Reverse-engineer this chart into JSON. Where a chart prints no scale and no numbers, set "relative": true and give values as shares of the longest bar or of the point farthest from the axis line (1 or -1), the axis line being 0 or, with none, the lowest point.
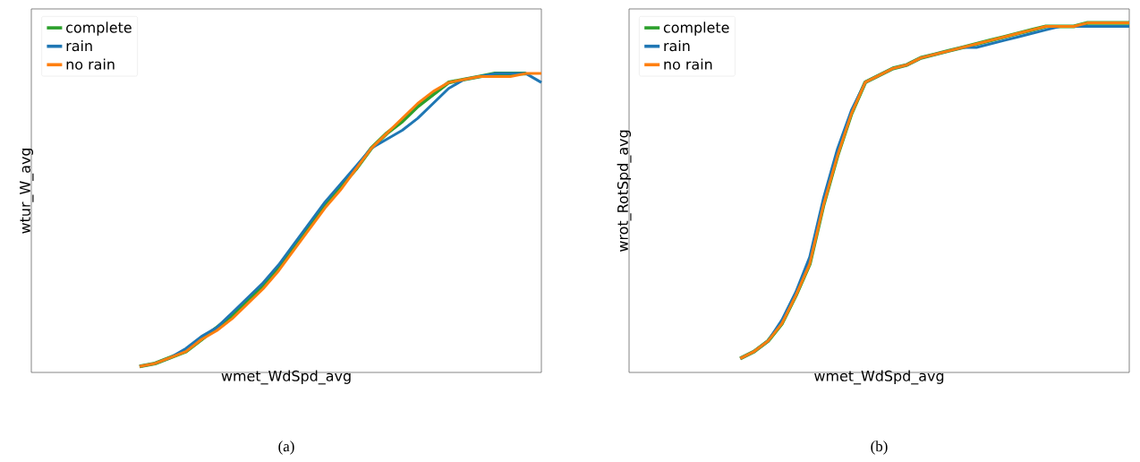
{
  "chart_data": [
    {
      "type": "line",
      "relative": true,
      "xlabel": "wmet_WdSpd_avg",
      "ylabel": "wtur_W_avg",
      "legend": "top left",
      "annotations": [
        "(a)"
      ],
      "categories": [
        null,
        null,
        null,
        null,
        null,
        null,
        null,
        null,
        null,
        null,
        null,
        null,
        null,
        null,
        null,
        null,
        null,
        null,
        null,
        null,
        null,
        null,
        null,
        null,
        null,
        null,
        null,
        null,
        null,
        null,
        null,
        null,
        null,
        null
      ],
      "series": [
        {
          "name": "complete",
          "color": "#2ca02c",
          "values": [
            null,
            null,
            null,
            null,
            null,
            null,
            null,
            0.02,
            0.03,
            0.05,
            0.07,
            0.11,
            0.15,
            0.19,
            0.24,
            0.29,
            0.35,
            0.42,
            0.49,
            0.56,
            0.62,
            0.68,
            0.75,
            0.8,
            0.84,
            0.89,
            0.93,
            0.97,
            0.98,
            0.99,
            1.0,
            1.0,
            1.0,
            null
          ]
        },
        {
          "name": "rain",
          "color": "#1f77b4",
          "values": [
            null,
            null,
            null,
            null,
            null,
            null,
            null,
            0.02,
            0.03,
            0.05,
            0.08,
            0.12,
            0.15,
            0.2,
            0.25,
            0.3,
            0.36,
            0.43,
            0.5,
            0.57,
            0.63,
            0.69,
            0.75,
            0.78,
            0.81,
            0.85,
            0.9,
            0.95,
            0.98,
            0.99,
            1.0,
            1.0,
            1.0,
            0.97
          ]
        },
        {
          "name": "no rain",
          "color": "#ff7f0e",
          "values": [
            null,
            null,
            null,
            null,
            null,
            null,
            null,
            0.02,
            0.03,
            0.05,
            0.07,
            0.11,
            0.14,
            0.18,
            0.23,
            0.28,
            0.34,
            0.41,
            0.48,
            0.55,
            0.61,
            0.68,
            0.75,
            0.8,
            0.85,
            0.9,
            0.94,
            0.97,
            0.98,
            0.99,
            0.99,
            0.99,
            1.0,
            1.0
          ]
        }
      ]
    },
    {
      "type": "line",
      "relative": true,
      "xlabel": "wmet_WdSpd_avg",
      "ylabel": "wrot_RotSpd_avg",
      "legend": "top left",
      "annotations": [
        "(b)"
      ],
      "categories": [
        null,
        null,
        null,
        null,
        null,
        null,
        null,
        null,
        null,
        null,
        null,
        null,
        null,
        null,
        null,
        null,
        null,
        null,
        null,
        null,
        null,
        null,
        null,
        null,
        null,
        null,
        null,
        null,
        null,
        null,
        null,
        null,
        null,
        null,
        null,
        null,
        null
      ],
      "series": [
        {
          "name": "complete",
          "color": "#2ca02c",
          "values": [
            null,
            null,
            null,
            null,
            null,
            null,
            null,
            null,
            0.04,
            0.06,
            0.09,
            0.14,
            0.22,
            0.31,
            0.48,
            0.62,
            0.74,
            0.83,
            0.85,
            0.87,
            0.88,
            0.9,
            0.91,
            0.92,
            0.93,
            0.94,
            0.95,
            0.96,
            0.97,
            0.98,
            0.99,
            0.99,
            0.99,
            1.0,
            1.0,
            1.0,
            1.0
          ]
        },
        {
          "name": "rain",
          "color": "#1f77b4",
          "values": [
            null,
            null,
            null,
            null,
            null,
            null,
            null,
            null,
            0.04,
            0.06,
            0.09,
            0.15,
            0.23,
            0.33,
            0.5,
            0.64,
            0.75,
            0.83,
            0.85,
            0.87,
            0.88,
            0.9,
            0.91,
            0.92,
            0.93,
            0.93,
            0.94,
            0.95,
            0.96,
            0.97,
            0.98,
            0.99,
            0.99,
            0.99,
            0.99,
            0.99,
            0.99
          ]
        },
        {
          "name": "no rain",
          "color": "#ff7f0e",
          "values": [
            null,
            null,
            null,
            null,
            null,
            null,
            null,
            null,
            0.04,
            0.06,
            0.09,
            0.14,
            0.22,
            0.31,
            0.48,
            0.62,
            0.74,
            0.83,
            0.85,
            0.87,
            0.88,
            0.9,
            0.91,
            0.92,
            0.93,
            0.94,
            0.95,
            0.96,
            0.97,
            0.98,
            0.99,
            0.99,
            0.99,
            1.0,
            1.0,
            1.0,
            1.0
          ]
        }
      ]
    }
  ]
}
